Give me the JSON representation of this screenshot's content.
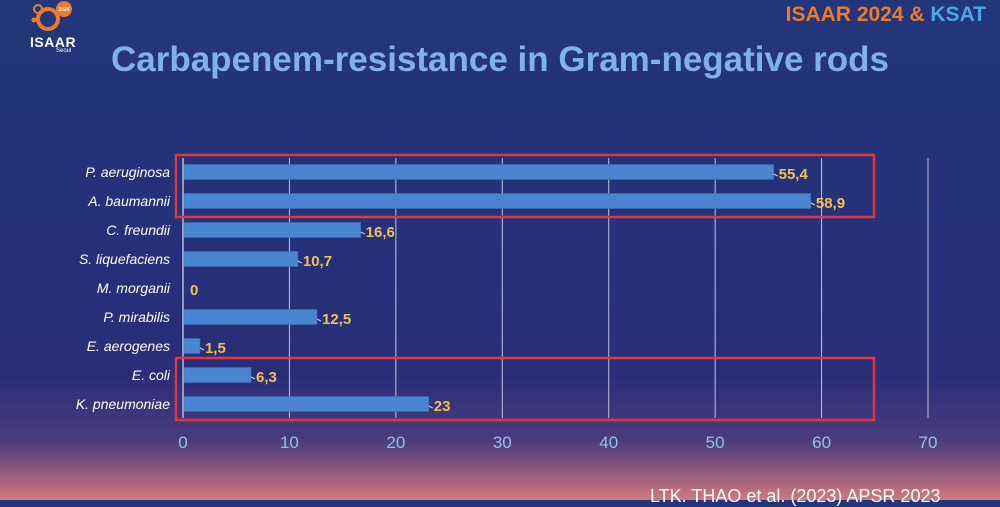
{
  "header": {
    "logo_year": "2024",
    "logo_name": "ISAAR",
    "logo_city": "Seoul",
    "brand_part1": "ISAAR 2024",
    "brand_amp": " & ",
    "brand_part2": "KSAT"
  },
  "title": "Carbapenem-resistance in Gram-negative rods",
  "source": "LTK. THAO et al. (2023) APSR 2023",
  "colors": {
    "bar": "#4a86cf",
    "value_label": "#f2c14e",
    "category_label": "#ffffff",
    "axis_tick": "#8fc2f0",
    "highlight_box": "#e2363a",
    "gridline": "#d8dcef"
  },
  "chart_data": {
    "type": "bar",
    "orientation": "horizontal",
    "categories": [
      "P. aeruginosa",
      "A. baumannii",
      "C. freundii",
      "S. liquefaciens",
      "M. morganii",
      "P. mirabilis",
      "E. aerogenes",
      "E. coli",
      "K. pneumoniae"
    ],
    "values": [
      55.4,
      58.9,
      16.6,
      10.7,
      0,
      12.5,
      1.5,
      6.3,
      23
    ],
    "value_labels": [
      "55,4",
      "58,9",
      "16,6",
      "10,7",
      "0",
      "12,5",
      "1,5",
      "6,3",
      "23"
    ],
    "xticks": [
      "0",
      "10",
      "20",
      "30",
      "40",
      "50",
      "60",
      "70"
    ],
    "xlim": [
      0,
      70
    ],
    "grid": true,
    "highlight_groups": [
      [
        "P. aeruginosa",
        "A. baumannii"
      ],
      [
        "E. coli",
        "K. pneumoniae"
      ]
    ]
  }
}
